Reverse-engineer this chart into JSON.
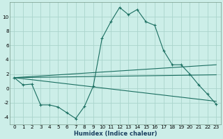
{
  "xlabel": "Humidex (Indice chaleur)",
  "bg_color": "#cceee8",
  "grid_color": "#aad4cc",
  "line_color": "#1a6e60",
  "xlim": [
    -0.5,
    23.5
  ],
  "ylim": [
    -5.0,
    12.0
  ],
  "xticks": [
    0,
    1,
    2,
    3,
    4,
    5,
    6,
    7,
    8,
    9,
    10,
    11,
    12,
    13,
    14,
    15,
    16,
    17,
    18,
    19,
    20,
    21,
    22,
    23
  ],
  "yticks": [
    -4,
    -2,
    0,
    2,
    4,
    6,
    8,
    10
  ],
  "line1_x": [
    0,
    1,
    2,
    3,
    4,
    5,
    6,
    7,
    8,
    9,
    10,
    11,
    12,
    13,
    14,
    15,
    16,
    17,
    18,
    19,
    20,
    21,
    22,
    23
  ],
  "line1_y": [
    1.5,
    0.5,
    0.6,
    -2.3,
    -2.3,
    -2.6,
    -3.4,
    -4.2,
    -2.5,
    0.3,
    7.0,
    9.3,
    11.3,
    10.3,
    11.0,
    9.3,
    8.8,
    5.3,
    3.3,
    3.3,
    2.0,
    0.5,
    -0.8,
    -2.2
  ],
  "line2_x": [
    0,
    23
  ],
  "line2_y": [
    1.5,
    3.3
  ],
  "line3_x": [
    0,
    23
  ],
  "line3_y": [
    1.5,
    1.9
  ],
  "line4_x": [
    0,
    23
  ],
  "line4_y": [
    1.5,
    -1.8
  ],
  "xlabel_fontsize": 6.0,
  "tick_fontsize": 5.2
}
